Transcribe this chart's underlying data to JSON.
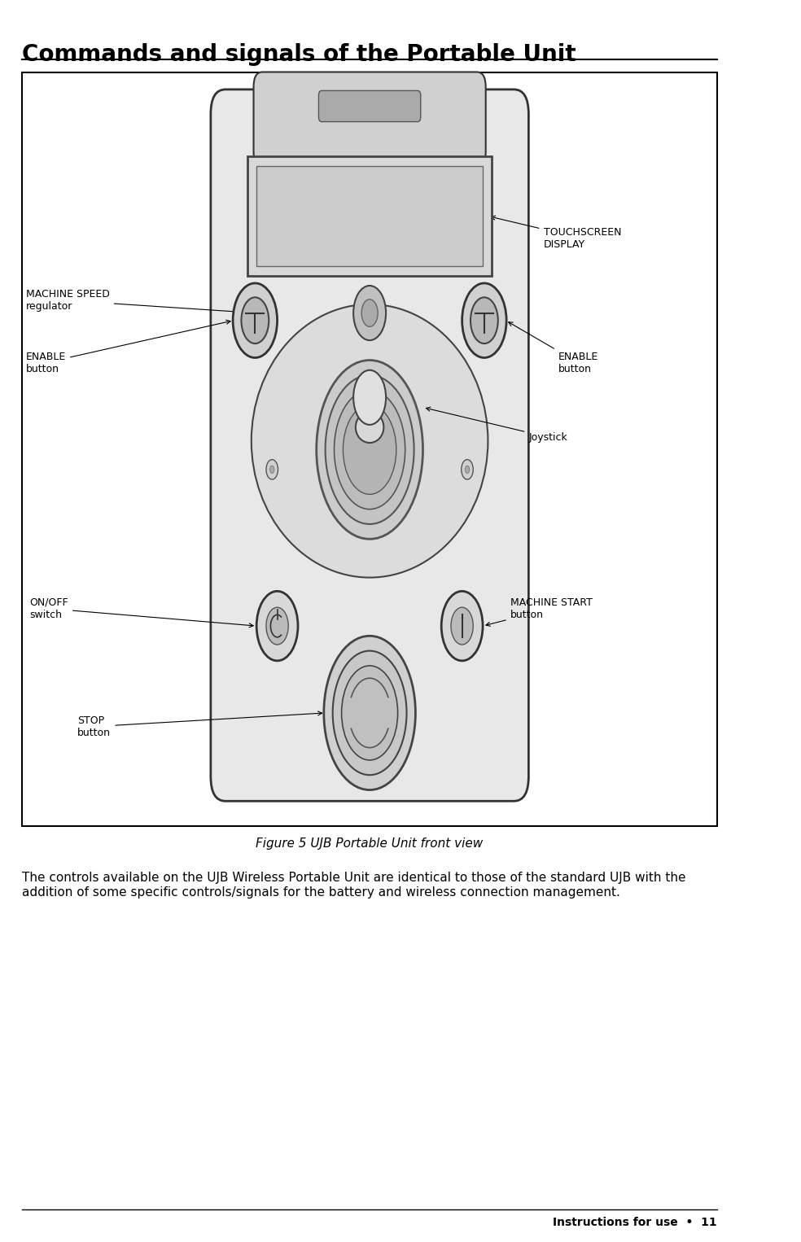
{
  "title": "Commands and signals of the Portable Unit",
  "figure_caption": "Figure 5 UJB Portable Unit front view",
  "body_text": "The controls available on the UJB Wireless Portable Unit are identical to those of the standard UJB with the\naddition of some specific controls/signals for the battery and wireless connection management.",
  "footer_text": "Instructions for use  •  11",
  "bg_color": "#ffffff",
  "title_fontsize": 20,
  "label_fontsize": 9,
  "body_fontsize": 11,
  "footer_fontsize": 10
}
